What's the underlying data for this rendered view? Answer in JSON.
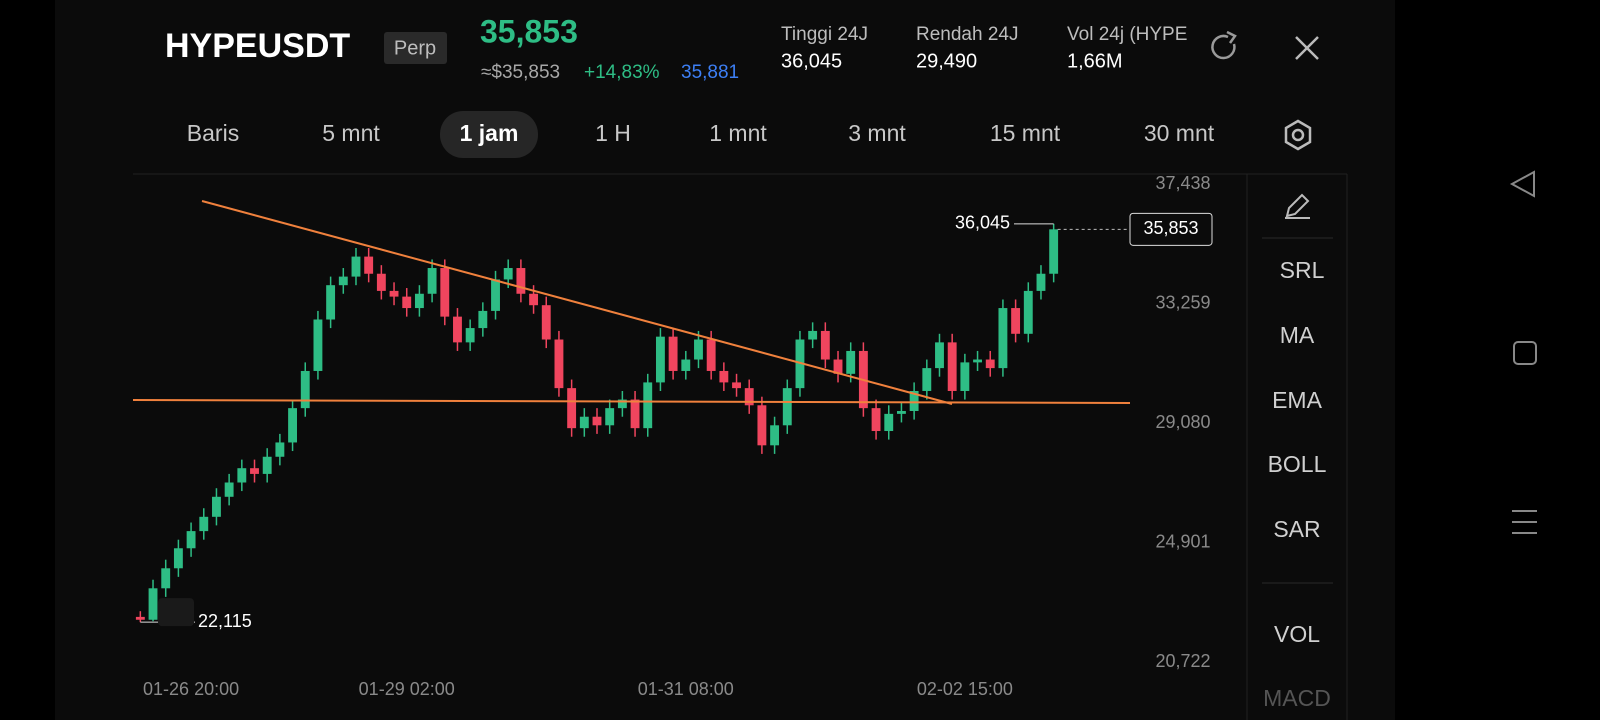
{
  "header": {
    "symbol": "HYPEUSDT",
    "badge": "Perp",
    "price": "35,853",
    "approx_price": "≈$35,853",
    "change": "+14,83%",
    "mark_price": "35,881",
    "stats": [
      {
        "label": "Tinggi 24J",
        "value": "36,045"
      },
      {
        "label": "Rendah 24J",
        "value": "29,490"
      },
      {
        "label": "Vol 24j (HYPE",
        "value": "1,66M"
      }
    ]
  },
  "tabs": [
    "Baris",
    "5 mnt",
    "1 jam",
    "1 H",
    "1 mnt",
    "3 mnt",
    "15 mnt",
    "30 mnt"
  ],
  "active_tab": 2,
  "indicators": [
    "SRL",
    "MA",
    "EMA",
    "BOLL",
    "SAR",
    "VOL",
    "MACD"
  ],
  "chart_data": {
    "type": "candlestick",
    "categories": [
      null,
      null,
      null,
      null,
      "01-26 20:00",
      null,
      null,
      null,
      null,
      null,
      null,
      null,
      null,
      null,
      null,
      null,
      null,
      null,
      null,
      null,
      null,
      "01-29 02:00",
      null,
      null,
      null,
      null,
      null,
      null,
      null,
      null,
      null,
      null,
      null,
      null,
      null,
      null,
      null,
      null,
      null,
      null,
      null,
      null,
      null,
      "01-31 08:00",
      null,
      null,
      null,
      null,
      null,
      null,
      null,
      null,
      null,
      null,
      null,
      null,
      null,
      null,
      null,
      null,
      null,
      null,
      null,
      null,
      null,
      "02-02 15:00",
      null,
      null,
      null,
      null,
      null,
      null,
      null
    ],
    "open": [
      22300,
      22200,
      23300,
      24000,
      24700,
      25300,
      25800,
      26500,
      27000,
      27500,
      27300,
      27900,
      28400,
      29600,
      30900,
      32700,
      33900,
      34200,
      34900,
      34300,
      33700,
      33500,
      33100,
      33600,
      34500,
      32800,
      31900,
      32400,
      33000,
      34100,
      34500,
      33600,
      33200,
      32000,
      30300,
      28900,
      29300,
      29000,
      29600,
      29900,
      28900,
      30500,
      32100,
      30900,
      31300,
      32000,
      30900,
      30500,
      30300,
      29700,
      28300,
      29000,
      30300,
      32000,
      32300,
      31300,
      30800,
      31600,
      29600,
      28800,
      29400,
      29500,
      30200,
      31000,
      31900,
      30200,
      31200,
      31300,
      31000,
      33100,
      32200,
      33700,
      34300
    ],
    "high": [
      22500,
      23600,
      24300,
      25000,
      25600,
      26100,
      26800,
      27300,
      27800,
      27800,
      28200,
      28700,
      29900,
      31200,
      33000,
      34200,
      34500,
      35200,
      35200,
      34600,
      34000,
      33800,
      33900,
      34800,
      34800,
      33100,
      32700,
      33300,
      34400,
      34800,
      34800,
      33900,
      33500,
      32300,
      30600,
      29600,
      29600,
      29900,
      30200,
      30200,
      30800,
      32400,
      32400,
      31600,
      32300,
      32300,
      31200,
      30800,
      30600,
      30000,
      29300,
      30600,
      32300,
      32600,
      32600,
      31600,
      31900,
      31900,
      29900,
      29700,
      29800,
      30500,
      31300,
      32200,
      32200,
      31500,
      31600,
      31600,
      33400,
      33400,
      34000,
      34600,
      36045
    ],
    "low": [
      22115,
      22150,
      23000,
      23700,
      24400,
      25000,
      25500,
      26200,
      26700,
      27000,
      27000,
      27600,
      28100,
      29300,
      30600,
      32400,
      33600,
      33900,
      34000,
      33400,
      33200,
      32800,
      32800,
      33300,
      32500,
      31600,
      31600,
      32100,
      32700,
      33800,
      33300,
      32900,
      31700,
      30000,
      28600,
      28600,
      28700,
      28700,
      29300,
      28600,
      28600,
      30200,
      30600,
      30600,
      31000,
      30600,
      30200,
      30000,
      29400,
      28000,
      28000,
      28700,
      30000,
      31700,
      31000,
      30500,
      30500,
      29300,
      28500,
      28500,
      29100,
      29200,
      29900,
      30700,
      29900,
      29900,
      30900,
      30700,
      30700,
      31900,
      31900,
      33400,
      34000
    ],
    "close": [
      22200,
      23300,
      24000,
      24700,
      25300,
      25800,
      26500,
      27000,
      27500,
      27300,
      27900,
      28400,
      29600,
      30900,
      32700,
      33900,
      34200,
      34900,
      34300,
      33700,
      33500,
      33100,
      33600,
      34500,
      32800,
      31900,
      32400,
      33000,
      34100,
      34500,
      33600,
      33200,
      32000,
      30300,
      28900,
      29300,
      29000,
      29600,
      29900,
      28900,
      30500,
      32100,
      30900,
      31300,
      32000,
      30900,
      30500,
      30300,
      29700,
      28300,
      29000,
      30300,
      32000,
      32300,
      31300,
      30800,
      31600,
      29600,
      28800,
      29400,
      29500,
      30200,
      31000,
      31900,
      30200,
      31200,
      31300,
      31000,
      33100,
      32200,
      33700,
      34300,
      35853
    ],
    "up_color": "#2ebd85",
    "down_color": "#f0455e",
    "ylim": [
      19219,
      37753
    ],
    "yticks": [
      {
        "value": 37438,
        "label": "37,438"
      },
      {
        "value": 33259,
        "label": "33,259"
      },
      {
        "value": 29080,
        "label": "29,080"
      },
      {
        "value": 24901,
        "label": "24,901"
      },
      {
        "value": 20722,
        "label": "20,722"
      }
    ],
    "grid": false,
    "max_label": {
      "value": 36045,
      "label": "36,045"
    },
    "min_label": {
      "value": 22115,
      "label": "22,115"
    },
    "last_price": {
      "value": 35853,
      "label": "35,853"
    }
  }
}
